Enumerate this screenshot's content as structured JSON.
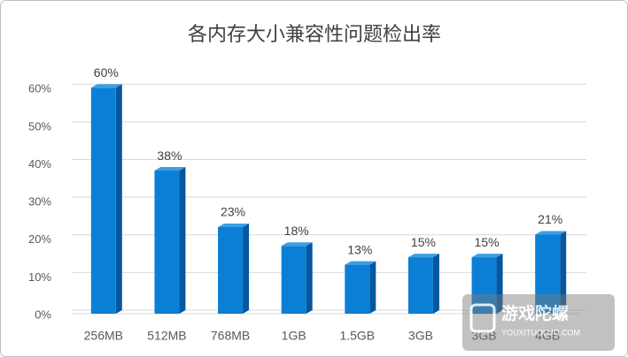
{
  "chart_data": {
    "type": "bar3d",
    "title": "各内存大小兼容性问题检出率",
    "categories": [
      "256MB",
      "512MB",
      "768MB",
      "1GB",
      "1.5GB",
      "3GB",
      "3GB",
      "4GB"
    ],
    "values": [
      60,
      38,
      23,
      18,
      13,
      15,
      15,
      21
    ],
    "value_labels": [
      "60%",
      "38%",
      "23%",
      "18%",
      "13%",
      "15%",
      "15%",
      "21%"
    ],
    "color": "#0b7fd6",
    "ylim": [
      0,
      65
    ],
    "yticks": [
      {
        "value": 0,
        "label": "0%"
      },
      {
        "value": 10,
        "label": "10%"
      },
      {
        "value": 20,
        "label": "20%"
      },
      {
        "value": 30,
        "label": "30%"
      },
      {
        "value": 40,
        "label": "40%"
      },
      {
        "value": 50,
        "label": "50%"
      },
      {
        "value": 60,
        "label": "60%"
      }
    ],
    "grid": true
  },
  "watermark": {
    "name": "游戏陀螺",
    "url": "YOUXITUOLUO.COM"
  }
}
